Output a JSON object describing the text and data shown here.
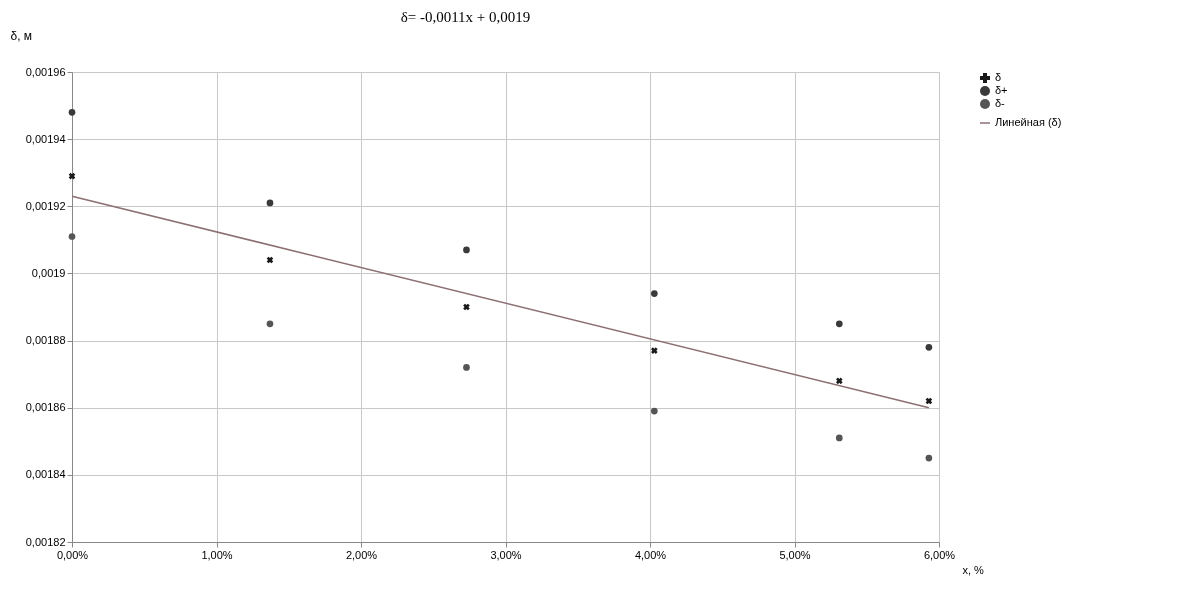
{
  "chart_data": {
    "type": "scatter",
    "title": "δ= -0,0011x + 0,0019",
    "xlabel": "x, %",
    "ylabel": "δ, м",
    "xlim": [
      0,
      6
    ],
    "xticks": [
      {
        "value": 0,
        "label": "0,00%"
      },
      {
        "value": 1,
        "label": "1,00%"
      },
      {
        "value": 2,
        "label": "2,00%"
      },
      {
        "value": 3,
        "label": "3,00%"
      },
      {
        "value": 4,
        "label": "4,00%"
      },
      {
        "value": 5,
        "label": "5,00%"
      },
      {
        "value": 6,
        "label": "6,00%"
      }
    ],
    "ylim": [
      0.00182,
      0.00196
    ],
    "yticks": [
      {
        "value": 0.00182,
        "label": "0,00182"
      },
      {
        "value": 0.00184,
        "label": "0,00184"
      },
      {
        "value": 0.00186,
        "label": "0,00186"
      },
      {
        "value": 0.00188,
        "label": "0,00188"
      },
      {
        "value": 0.0019,
        "label": "0,0019"
      },
      {
        "value": 0.00192,
        "label": "0,00192"
      },
      {
        "value": 0.00194,
        "label": "0,00194"
      },
      {
        "value": 0.00196,
        "label": "0,00196"
      }
    ],
    "x": [
      0,
      1.37,
      2.73,
      4.03,
      5.31,
      5.93
    ],
    "series": [
      {
        "name": "δ",
        "color": "#1a1a1a",
        "marker": "cross",
        "values": [
          0.001929,
          0.001904,
          0.00189,
          0.001877,
          0.001868,
          0.001862
        ]
      },
      {
        "name": "δ+",
        "color": "#3a3a3a",
        "marker": "circle",
        "values": [
          0.001948,
          0.001921,
          0.001907,
          0.001894,
          0.001885,
          0.001878
        ]
      },
      {
        "name": "δ-",
        "color": "#555555",
        "marker": "circle",
        "values": [
          0.001911,
          0.001885,
          0.001872,
          0.001859,
          0.001851,
          0.001845
        ]
      },
      {
        "name": "Линейная (δ)",
        "type": "line",
        "color": "#8c6f73",
        "marker": "none",
        "x": [
          0,
          5.93
        ],
        "values": [
          0.001923,
          0.00186
        ]
      }
    ],
    "grid": true,
    "legend": "right"
  }
}
